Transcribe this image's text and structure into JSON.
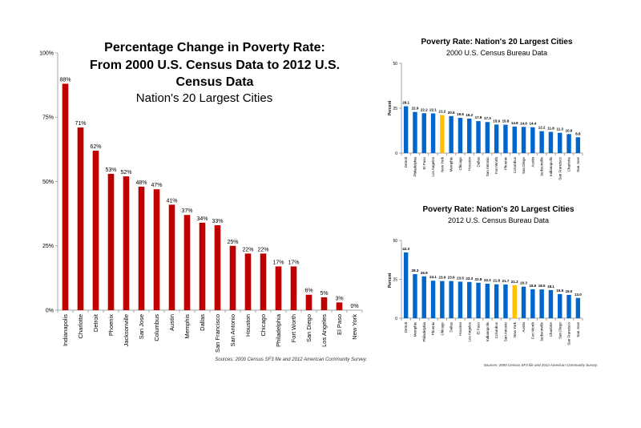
{
  "colors": {
    "change_bar": "#c00000",
    "rate_bar": "#0066cc",
    "highlight_bar": "#ffc000",
    "axis": "#a6a6a6",
    "text": "#000000",
    "source_text": "#333333"
  },
  "chart_data": [
    {
      "id": "change",
      "type": "bar",
      "title": "Percentage Change in Poverty Rate: From 2000 U.S. Census Data to 2012 U.S. Census Data",
      "title_lines": [
        "Percentage Change in Poverty Rate:",
        "From 2000 U.S. Census Data to 2012 U.S.",
        "Census Data"
      ],
      "subtitle": "Nation's 20 Largest Cities",
      "xlabel": "",
      "ylabel": "",
      "ylim": [
        0,
        100
      ],
      "yticks": [
        0,
        25,
        50,
        75,
        100
      ],
      "ytick_labels": [
        "0%",
        "25%",
        "50%",
        "75%",
        "100%"
      ],
      "grid": false,
      "categories": [
        "Indianapolis",
        "Charlotte",
        "Detroit",
        "Phoenix",
        "Jacksonville",
        "San Jose",
        "Columbus",
        "Austin",
        "Memphis",
        "Dallas",
        "San Francisco",
        "San Antonio",
        "Houston",
        "Chicago",
        "Philadelphia",
        "Fort Worth",
        "San Diego",
        "Los Angeles",
        "El Paso",
        "New York"
      ],
      "values": [
        88,
        71,
        62,
        53,
        52,
        48,
        47,
        41,
        37,
        34,
        33,
        25,
        22,
        22,
        17,
        17,
        6,
        5,
        3,
        0
      ],
      "value_labels": [
        "88%",
        "71%",
        "62%",
        "53%",
        "52%",
        "48%",
        "47%",
        "41%",
        "37%",
        "34%",
        "33%",
        "25%",
        "22%",
        "22%",
        "17%",
        "17%",
        "6%",
        "5%",
        "3%",
        "0%"
      ],
      "source": "Sources: 2000 Census SF3 file and 2012 American Community Survey."
    },
    {
      "id": "rate2000",
      "type": "bar",
      "title": "Poverty Rate: Nation's 20 Largest Cities",
      "subtitle": "2000 U.S. Census Bureau Data",
      "xlabel": "",
      "ylabel": "Percent",
      "ylim": [
        0,
        50
      ],
      "yticks": [
        0,
        25,
        50
      ],
      "ytick_labels": [
        "0",
        "25",
        "50"
      ],
      "grid": false,
      "highlight": "New York",
      "categories": [
        "Detroit",
        "Philadelphia",
        "El Paso",
        "Los Angeles",
        "New York",
        "Memphis",
        "Chicago",
        "Houston",
        "Dallas",
        "San Antonio",
        "Fort Worth",
        "Phoenix",
        "Columbus",
        "San Diego",
        "Austin",
        "Jacksonville",
        "Indianapolis",
        "San Francisco",
        "Charlotte",
        "San Jose"
      ],
      "values": [
        26.1,
        22.9,
        22.2,
        22.1,
        21.2,
        20.6,
        19.6,
        19.2,
        17.8,
        17.3,
        15.9,
        15.8,
        14.8,
        14.6,
        14.4,
        12.2,
        11.8,
        11.3,
        10.6,
        8.8
      ],
      "value_labels": [
        "26.1",
        "22.9",
        "22.2",
        "22.1",
        "21.2",
        "20.6",
        "19.6",
        "19.2",
        "17.8",
        "17.3",
        "15.9",
        "15.8",
        "14.8",
        "14.6",
        "14.4",
        "12.2",
        "11.8",
        "11.3",
        "10.6",
        "8.8"
      ],
      "source": ""
    },
    {
      "id": "rate2012",
      "type": "bar",
      "title": "Poverty Rate: Nation's 20 Largest Cities",
      "subtitle": "2012 U.S. Census Bureau Data",
      "xlabel": "",
      "ylabel": "Percent",
      "ylim": [
        0,
        50
      ],
      "yticks": [
        0,
        25,
        50
      ],
      "ytick_labels": [
        "0",
        "25",
        "50"
      ],
      "grid": false,
      "highlight": "New York",
      "categories": [
        "Detroit",
        "Memphis",
        "Philadelphia",
        "Phoenix",
        "Chicago",
        "Dallas",
        "Houston",
        "Los Angeles",
        "El Paso",
        "Indianapolis",
        "Columbus",
        "San Antonio",
        "New York",
        "Austin",
        "Fort Worth",
        "Jacksonville",
        "Charlotte",
        "San Diego",
        "San Francisco",
        "San Jose"
      ],
      "values": [
        42.3,
        28.3,
        26.9,
        24.1,
        23.9,
        23.9,
        23.5,
        23.3,
        22.8,
        22.2,
        21.8,
        21.7,
        21.2,
        20.3,
        18.6,
        18.5,
        18.1,
        15.5,
        15.0,
        13.0
      ],
      "value_labels": [
        "42.3",
        "28.3",
        "26.9",
        "24.1",
        "23.9",
        "23.9",
        "23.5",
        "23.3",
        "22.8",
        "22.2",
        "21.8",
        "21.7",
        "21.2",
        "20.3",
        "18.6",
        "18.5",
        "18.1",
        "15.5",
        "15.0",
        "13.0"
      ],
      "source": "Sources: 2000 Census SF3 file and 2012 American Community Survey."
    }
  ]
}
